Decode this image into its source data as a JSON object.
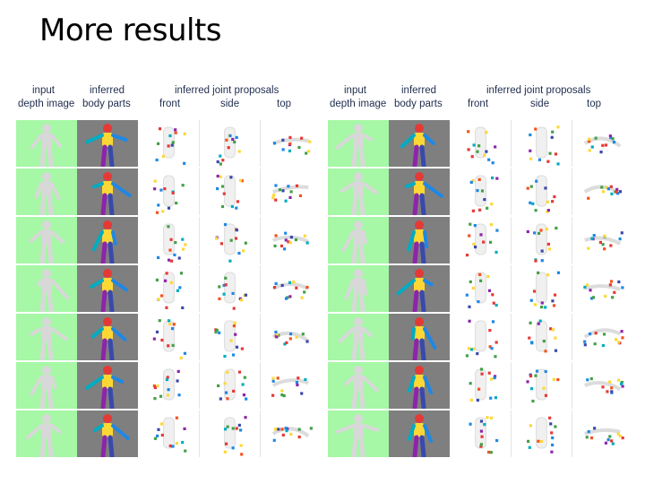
{
  "slide": {
    "title": "More results"
  },
  "figure_headers": {
    "input": "input",
    "depth_image": "depth image",
    "inferred": "inferred",
    "body_parts": "body parts",
    "joint_proposals": "inferred joint proposals",
    "front": "front",
    "side": "side",
    "top": "top"
  },
  "colors": {
    "depth_background": "#a6f7a6",
    "body_parts_background": "#7f7f7f",
    "person_depth": "#d8d8d8",
    "joint_colors": [
      "#e53935",
      "#1e88e5",
      "#43a047",
      "#fdd835",
      "#8e24aa",
      "#00acc1",
      "#f4511e",
      "#3949ab"
    ]
  },
  "panels": [
    {
      "name": "left",
      "rows": 7
    },
    {
      "name": "right",
      "rows": 7
    }
  ]
}
